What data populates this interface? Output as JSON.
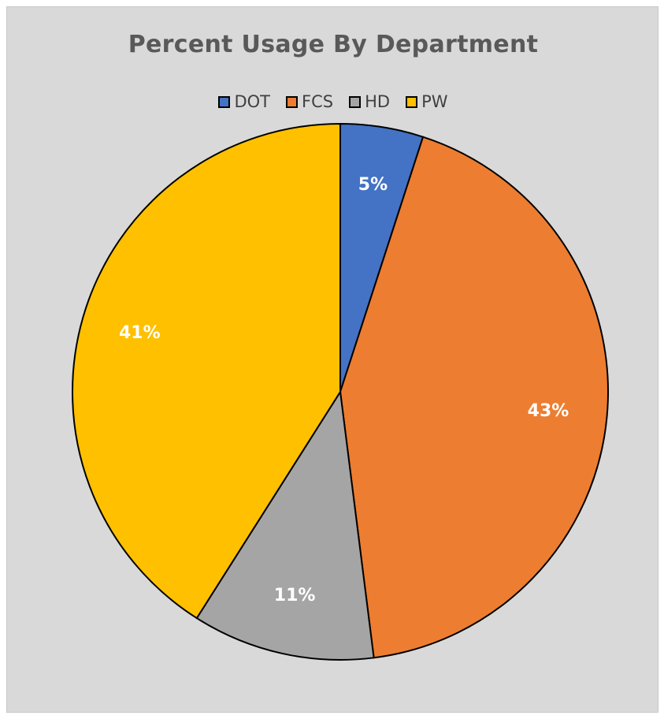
{
  "chart_data": {
    "type": "pie",
    "title": "Percent Usage By Department",
    "categories": [
      "DOT",
      "FCS",
      "HD",
      "PW"
    ],
    "values": [
      5,
      43,
      11,
      41
    ],
    "data_labels": [
      "5%",
      "43%",
      "11%",
      "41%"
    ],
    "colors": [
      "#4472c4",
      "#ed7d31",
      "#a5a5a5",
      "#ffc000"
    ],
    "legend_position": "top",
    "background": "#d9d9d9"
  }
}
